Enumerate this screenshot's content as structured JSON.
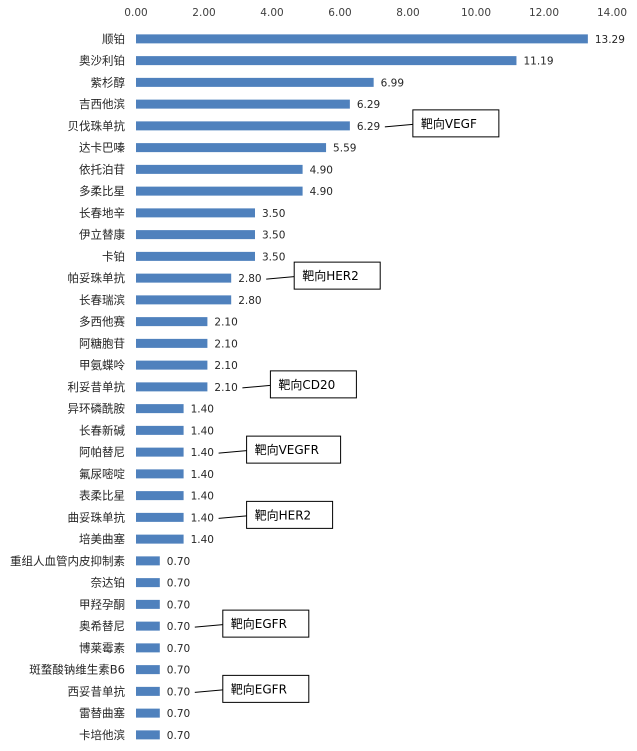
{
  "chart_data": {
    "type": "bar",
    "orientation": "horizontal",
    "xlim": [
      0,
      14
    ],
    "xticks": [
      "0.00",
      "2.00",
      "4.00",
      "6.00",
      "8.00",
      "10.00",
      "12.00",
      "14.00"
    ],
    "xaxis_position": "top",
    "grid": false,
    "bar_color": "#4f81bd",
    "categories": [
      "顺铂",
      "奥沙利铂",
      "紫杉醇",
      "吉西他滨",
      "贝伐珠单抗",
      "达卡巴嗪",
      "依托泊苷",
      "多柔比星",
      "长春地辛",
      "伊立替康",
      "卡铂",
      "帕妥珠单抗",
      "长春瑞滨",
      "多西他赛",
      "阿糖胞苷",
      "甲氨蝶呤",
      "利妥昔单抗",
      "异环磷酰胺",
      "长春新碱",
      "阿帕替尼",
      "氟尿嘧啶",
      "表柔比星",
      "曲妥珠单抗",
      "培美曲塞",
      "重组人血管内皮抑制素",
      "奈达铂",
      "甲羟孕酮",
      "奥希替尼",
      "博莱霉素",
      "斑蝥酸钠维生素B6",
      "西妥昔单抗",
      "雷替曲塞",
      "卡培他滨"
    ],
    "values": [
      13.29,
      11.19,
      6.99,
      6.29,
      6.29,
      5.59,
      4.9,
      4.9,
      3.5,
      3.5,
      3.5,
      2.8,
      2.8,
      2.1,
      2.1,
      2.1,
      2.1,
      1.4,
      1.4,
      1.4,
      1.4,
      1.4,
      1.4,
      1.4,
      0.7,
      0.7,
      0.7,
      0.7,
      0.7,
      0.7,
      0.7,
      0.7,
      0.7
    ],
    "value_labels": [
      "13.29",
      "11.19",
      "6.99",
      "6.29",
      "6.29",
      "5.59",
      "4.90",
      "4.90",
      "3.50",
      "3.50",
      "3.50",
      "2.80",
      "2.80",
      "2.10",
      "2.10",
      "2.10",
      "2.10",
      "1.40",
      "1.40",
      "1.40",
      "1.40",
      "1.40",
      "1.40",
      "1.40",
      "0.70",
      "0.70",
      "0.70",
      "0.70",
      "0.70",
      "0.70",
      "0.70",
      "0.70",
      "0.70"
    ],
    "annotations": [
      {
        "category": "贝伐珠单抗",
        "text": "靶向VEGF"
      },
      {
        "category": "帕妥珠单抗",
        "text": "靶向HER2"
      },
      {
        "category": "利妥昔单抗",
        "text": "靶向CD20"
      },
      {
        "category": "阿帕替尼",
        "text": "靶向VEGFR"
      },
      {
        "category": "曲妥珠单抗",
        "text": "靶向HER2"
      },
      {
        "category": "奥希替尼",
        "text": "靶向EGFR"
      },
      {
        "category": "西妥昔单抗",
        "text": "靶向EGFR"
      }
    ]
  }
}
